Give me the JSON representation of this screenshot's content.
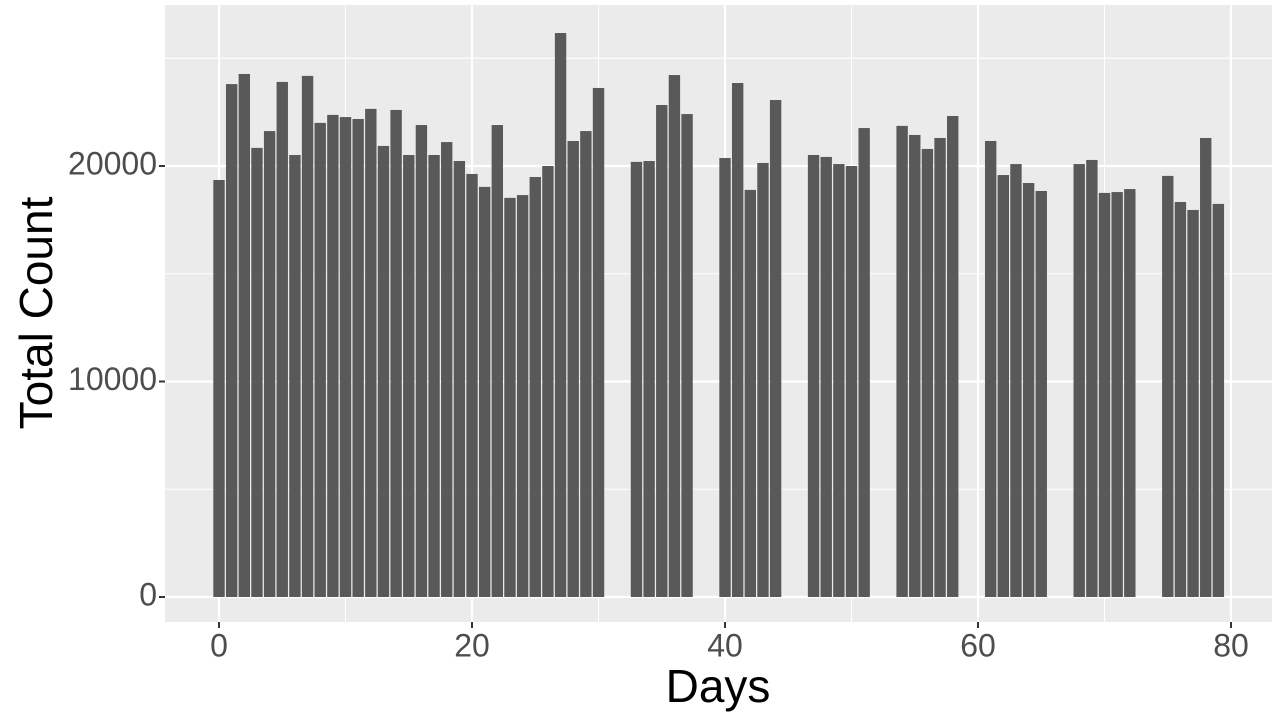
{
  "chart_data": {
    "type": "bar",
    "x_label": "Days",
    "y_label": "Total Count",
    "x": [
      0,
      1,
      2,
      3,
      4,
      5,
      6,
      7,
      8,
      9,
      10,
      11,
      12,
      13,
      14,
      15,
      16,
      17,
      18,
      19,
      20,
      21,
      22,
      23,
      24,
      25,
      26,
      27,
      28,
      29,
      30,
      33,
      34,
      35,
      36,
      37,
      40,
      41,
      42,
      43,
      44,
      47,
      48,
      49,
      50,
      51,
      54,
      55,
      56,
      57,
      58,
      61,
      62,
      63,
      64,
      65,
      68,
      69,
      70,
      71,
      72,
      75,
      76,
      77,
      78,
      79
    ],
    "values": [
      19350,
      23800,
      24270,
      20840,
      21620,
      23900,
      20510,
      24180,
      22000,
      22370,
      22270,
      22180,
      22650,
      20930,
      22600,
      20510,
      21900,
      20510,
      21110,
      20230,
      19630,
      19030,
      21900,
      18520,
      18650,
      19490,
      20000,
      26170,
      21160,
      21620,
      23620,
      20190,
      20230,
      22830,
      24220,
      22410,
      20370,
      23850,
      18890,
      20140,
      23060,
      20510,
      20420,
      20090,
      20000,
      21760,
      21860,
      21440,
      20790,
      21300,
      22320,
      21160,
      19580,
      20090,
      19210,
      18840,
      20090,
      20280,
      18750,
      18790,
      18930,
      19540,
      18330,
      17960,
      21300,
      18240
    ],
    "color": "#595959",
    "xlim": [
      -4.27,
      83.24
    ],
    "ylim": [
      -1160,
      27470
    ],
    "xticks": [
      0,
      20,
      40,
      60,
      80
    ],
    "yticks": [
      0,
      10000,
      20000
    ],
    "grid": true,
    "panel_color": "#ebebeb"
  }
}
